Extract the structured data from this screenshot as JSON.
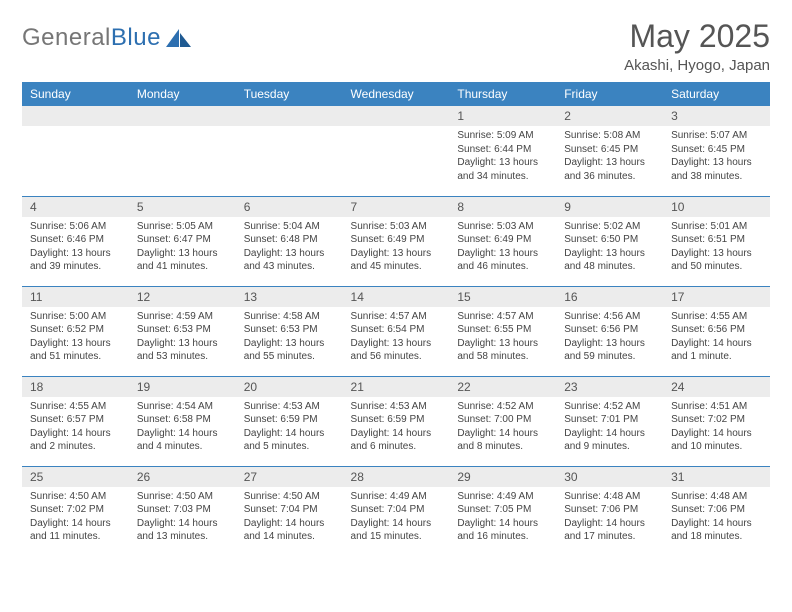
{
  "logo": {
    "part1": "General",
    "part2": "Blue"
  },
  "title": "May 2025",
  "location": "Akashi, Hyogo, Japan",
  "header_bg": "#3b83c0",
  "daynum_bg": "#ececec",
  "border_color": "#3b83c0",
  "weekdays": [
    "Sunday",
    "Monday",
    "Tuesday",
    "Wednesday",
    "Thursday",
    "Friday",
    "Saturday"
  ],
  "weeks": [
    [
      null,
      null,
      null,
      null,
      {
        "n": "1",
        "sr": "5:09 AM",
        "ss": "6:44 PM",
        "dl": "13 hours and 34 minutes."
      },
      {
        "n": "2",
        "sr": "5:08 AM",
        "ss": "6:45 PM",
        "dl": "13 hours and 36 minutes."
      },
      {
        "n": "3",
        "sr": "5:07 AM",
        "ss": "6:45 PM",
        "dl": "13 hours and 38 minutes."
      }
    ],
    [
      {
        "n": "4",
        "sr": "5:06 AM",
        "ss": "6:46 PM",
        "dl": "13 hours and 39 minutes."
      },
      {
        "n": "5",
        "sr": "5:05 AM",
        "ss": "6:47 PM",
        "dl": "13 hours and 41 minutes."
      },
      {
        "n": "6",
        "sr": "5:04 AM",
        "ss": "6:48 PM",
        "dl": "13 hours and 43 minutes."
      },
      {
        "n": "7",
        "sr": "5:03 AM",
        "ss": "6:49 PM",
        "dl": "13 hours and 45 minutes."
      },
      {
        "n": "8",
        "sr": "5:03 AM",
        "ss": "6:49 PM",
        "dl": "13 hours and 46 minutes."
      },
      {
        "n": "9",
        "sr": "5:02 AM",
        "ss": "6:50 PM",
        "dl": "13 hours and 48 minutes."
      },
      {
        "n": "10",
        "sr": "5:01 AM",
        "ss": "6:51 PM",
        "dl": "13 hours and 50 minutes."
      }
    ],
    [
      {
        "n": "11",
        "sr": "5:00 AM",
        "ss": "6:52 PM",
        "dl": "13 hours and 51 minutes."
      },
      {
        "n": "12",
        "sr": "4:59 AM",
        "ss": "6:53 PM",
        "dl": "13 hours and 53 minutes."
      },
      {
        "n": "13",
        "sr": "4:58 AM",
        "ss": "6:53 PM",
        "dl": "13 hours and 55 minutes."
      },
      {
        "n": "14",
        "sr": "4:57 AM",
        "ss": "6:54 PM",
        "dl": "13 hours and 56 minutes."
      },
      {
        "n": "15",
        "sr": "4:57 AM",
        "ss": "6:55 PM",
        "dl": "13 hours and 58 minutes."
      },
      {
        "n": "16",
        "sr": "4:56 AM",
        "ss": "6:56 PM",
        "dl": "13 hours and 59 minutes."
      },
      {
        "n": "17",
        "sr": "4:55 AM",
        "ss": "6:56 PM",
        "dl": "14 hours and 1 minute."
      }
    ],
    [
      {
        "n": "18",
        "sr": "4:55 AM",
        "ss": "6:57 PM",
        "dl": "14 hours and 2 minutes."
      },
      {
        "n": "19",
        "sr": "4:54 AM",
        "ss": "6:58 PM",
        "dl": "14 hours and 4 minutes."
      },
      {
        "n": "20",
        "sr": "4:53 AM",
        "ss": "6:59 PM",
        "dl": "14 hours and 5 minutes."
      },
      {
        "n": "21",
        "sr": "4:53 AM",
        "ss": "6:59 PM",
        "dl": "14 hours and 6 minutes."
      },
      {
        "n": "22",
        "sr": "4:52 AM",
        "ss": "7:00 PM",
        "dl": "14 hours and 8 minutes."
      },
      {
        "n": "23",
        "sr": "4:52 AM",
        "ss": "7:01 PM",
        "dl": "14 hours and 9 minutes."
      },
      {
        "n": "24",
        "sr": "4:51 AM",
        "ss": "7:02 PM",
        "dl": "14 hours and 10 minutes."
      }
    ],
    [
      {
        "n": "25",
        "sr": "4:50 AM",
        "ss": "7:02 PM",
        "dl": "14 hours and 11 minutes."
      },
      {
        "n": "26",
        "sr": "4:50 AM",
        "ss": "7:03 PM",
        "dl": "14 hours and 13 minutes."
      },
      {
        "n": "27",
        "sr": "4:50 AM",
        "ss": "7:04 PM",
        "dl": "14 hours and 14 minutes."
      },
      {
        "n": "28",
        "sr": "4:49 AM",
        "ss": "7:04 PM",
        "dl": "14 hours and 15 minutes."
      },
      {
        "n": "29",
        "sr": "4:49 AM",
        "ss": "7:05 PM",
        "dl": "14 hours and 16 minutes."
      },
      {
        "n": "30",
        "sr": "4:48 AM",
        "ss": "7:06 PM",
        "dl": "14 hours and 17 minutes."
      },
      {
        "n": "31",
        "sr": "4:48 AM",
        "ss": "7:06 PM",
        "dl": "14 hours and 18 minutes."
      }
    ]
  ],
  "labels": {
    "sunrise": "Sunrise:",
    "sunset": "Sunset:",
    "daylight": "Daylight:"
  }
}
